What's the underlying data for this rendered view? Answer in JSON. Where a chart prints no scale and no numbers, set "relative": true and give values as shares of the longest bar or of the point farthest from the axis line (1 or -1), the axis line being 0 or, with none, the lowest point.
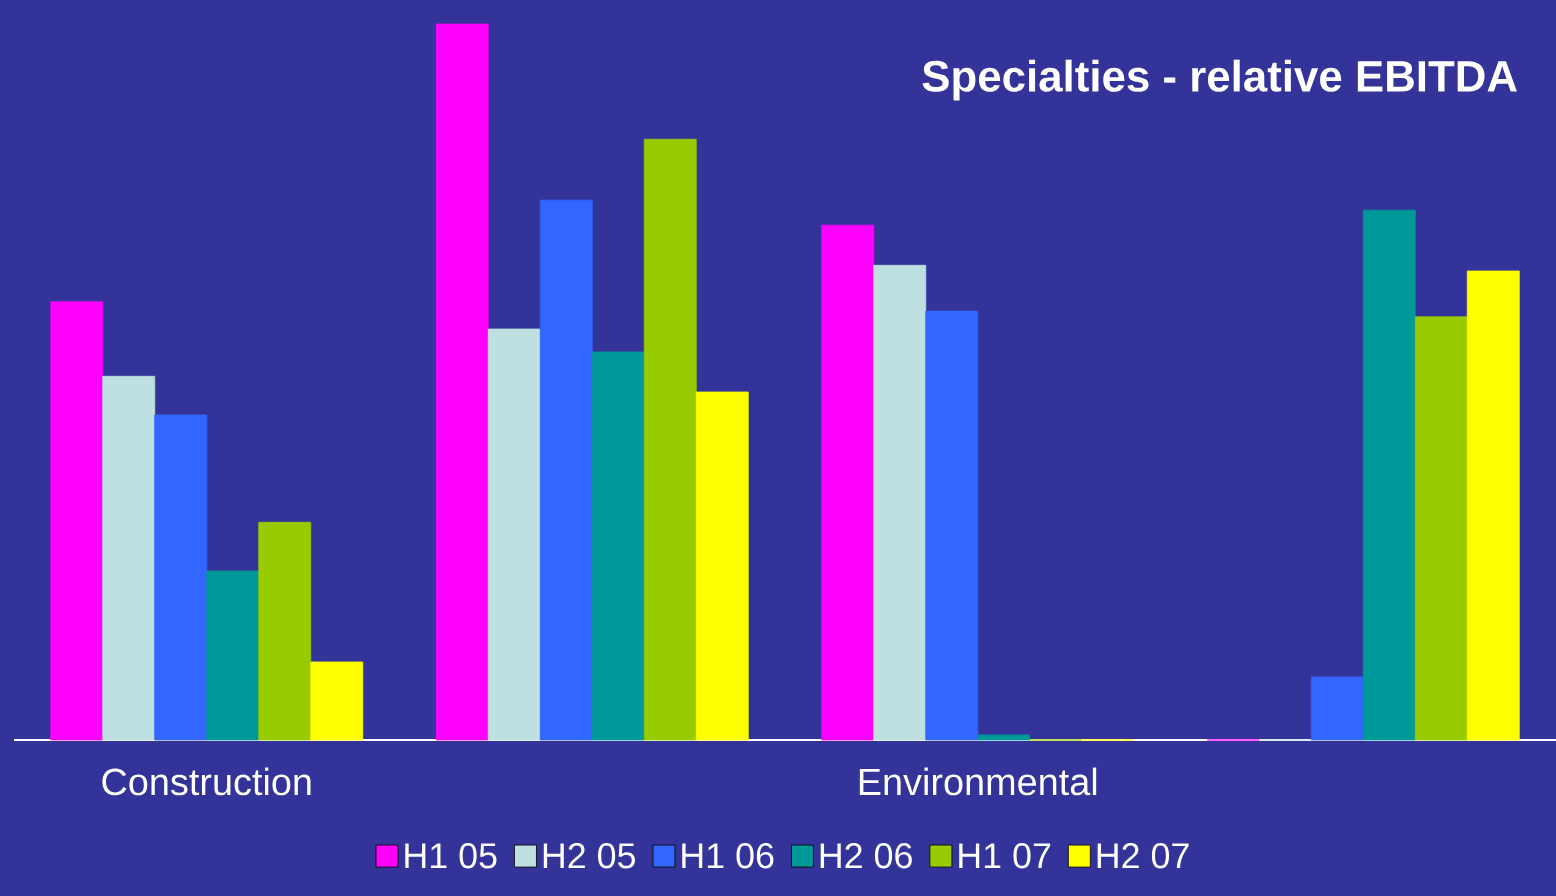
{
  "chart_data": {
    "type": "bar",
    "title": "Specialties  - relative EBITDA",
    "relative": true,
    "legend": "bottom",
    "categories": [
      "Construction",
      null,
      "Environmental",
      null
    ],
    "series": [
      {
        "name": "H1 05",
        "color": "#ff00ff",
        "values": [
          0.612,
          1.0,
          0.719,
          0
        ]
      },
      {
        "name": "H2 05",
        "color": "#bfe0e0",
        "values": [
          0.508,
          0.574,
          0.663,
          0
        ]
      },
      {
        "name": "H1 06",
        "color": "#3366ff",
        "values": [
          0.454,
          0.754,
          0.599,
          0.088
        ]
      },
      {
        "name": "H2 06",
        "color": "#009999",
        "values": [
          0.236,
          0.542,
          0.007,
          0.74
        ]
      },
      {
        "name": "H1 07",
        "color": "#99cc00",
        "values": [
          0.304,
          0.839,
          0,
          0.591
        ]
      },
      {
        "name": "H2 07",
        "color": "#ffff00",
        "values": [
          0.109,
          0.486,
          0,
          0.655
        ]
      }
    ]
  }
}
